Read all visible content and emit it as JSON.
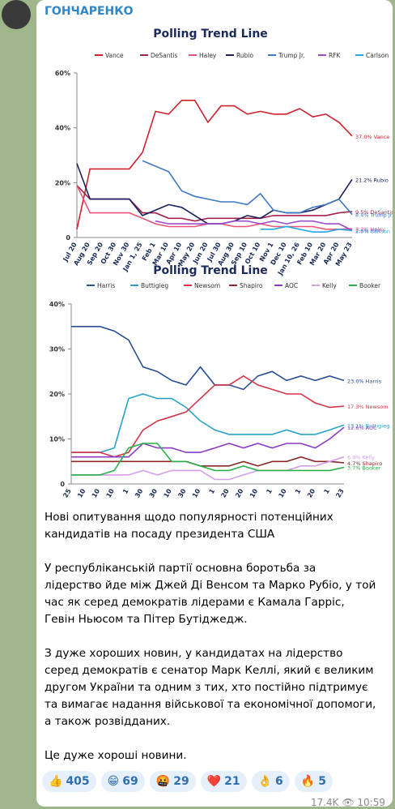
{
  "header": {
    "channel": "ГОНЧАРЕНКО"
  },
  "chart_data": [
    {
      "type": "line",
      "title": "Polling Trend Line",
      "categories": [
        "Jul 20",
        "Aug 20",
        "Sep 20",
        "Oct 30",
        "Nov 30",
        "Jan 1, 25",
        "Feb 1",
        "Mar 10",
        "Apr 10",
        "May 20",
        "Jun 20",
        "Jul 30",
        "Aug 30",
        "Sep 10",
        "Oct 10",
        "Nov 1",
        "Dec 10",
        "Jan 10, 26",
        "Feb 10",
        "Mar 20",
        "Apr 20",
        "May 23"
      ],
      "ylim": [
        0,
        60
      ],
      "yticks": [
        0,
        {
          "value": 20,
          "label": "20%"
        },
        {
          "value": 40,
          "label": "40%"
        },
        {
          "value": 60,
          "label": "60%"
        }
      ],
      "grid": false,
      "series": [
        {
          "name": "Vance",
          "color": "#d0212f",
          "values": [
            3,
            25,
            25,
            25,
            25,
            31,
            46,
            45,
            50,
            50,
            42,
            48,
            48,
            45,
            46,
            45,
            45,
            47,
            44,
            45,
            42,
            37.0
          ],
          "value_labels": [
            null,
            null,
            null,
            null,
            null,
            null,
            null,
            null,
            null,
            null,
            null,
            null,
            null,
            null,
            null,
            null,
            null,
            null,
            null,
            null,
            null,
            "37.0%"
          ]
        },
        {
          "name": "DeSantis",
          "color": "#a3214a",
          "values": [
            19,
            14,
            14,
            14,
            14,
            9,
            9,
            7,
            7,
            6,
            7,
            7,
            7,
            7,
            7,
            8,
            8,
            8,
            8,
            8,
            9,
            9.5
          ],
          "value_labels": [
            null,
            null,
            null,
            null,
            null,
            null,
            null,
            null,
            null,
            null,
            null,
            null,
            null,
            null,
            null,
            null,
            null,
            null,
            null,
            null,
            null,
            "9.5%"
          ]
        },
        {
          "name": "Haley",
          "color": "#e8547a",
          "values": [
            19,
            9,
            9,
            9,
            9,
            7,
            5,
            4,
            4,
            4,
            5,
            5,
            4,
            4,
            5,
            4,
            4,
            4,
            4,
            3,
            3,
            3.2
          ],
          "value_labels": [
            null,
            null,
            null,
            null,
            null,
            null,
            null,
            null,
            null,
            null,
            null,
            null,
            null,
            null,
            null,
            null,
            null,
            null,
            null,
            null,
            null,
            "3.2%"
          ]
        },
        {
          "name": "Rubio",
          "color": "#1b1f5e",
          "values": [
            27,
            14,
            14,
            14,
            14,
            8,
            10,
            12,
            11,
            8,
            5,
            5,
            6,
            8,
            7,
            10,
            9,
            9,
            10,
            12,
            14,
            21.2
          ],
          "value_labels": [
            null,
            null,
            null,
            null,
            null,
            null,
            null,
            null,
            null,
            null,
            null,
            null,
            null,
            null,
            null,
            null,
            null,
            null,
            null,
            null,
            null,
            "21.2%"
          ]
        },
        {
          "name": "Trump Jr.",
          "color": "#3f78c4",
          "values": [
            null,
            null,
            null,
            null,
            null,
            28,
            26,
            24,
            17,
            15,
            14,
            13,
            13,
            12,
            16,
            10,
            9,
            9,
            11,
            12,
            14,
            8.4
          ],
          "value_labels": [
            null,
            null,
            null,
            null,
            null,
            null,
            null,
            null,
            null,
            null,
            null,
            null,
            null,
            null,
            null,
            null,
            null,
            null,
            null,
            null,
            null,
            "8.4%"
          ]
        },
        {
          "name": "RFK",
          "color": "#9b4dca",
          "values": [
            null,
            null,
            null,
            null,
            null,
            null,
            6,
            5,
            5,
            5,
            5,
            5,
            6,
            6,
            5,
            6,
            5,
            6,
            6,
            5,
            5,
            2.6
          ],
          "value_labels": [
            null,
            null,
            null,
            null,
            null,
            null,
            null,
            null,
            null,
            null,
            null,
            null,
            null,
            null,
            null,
            null,
            null,
            null,
            null,
            null,
            null,
            "2.6%"
          ]
        },
        {
          "name": "Carlson",
          "color": "#29a8e0",
          "values": [
            null,
            null,
            null,
            null,
            null,
            null,
            null,
            null,
            null,
            null,
            null,
            null,
            null,
            null,
            3,
            3,
            4,
            3,
            2,
            2,
            3,
            2.5
          ],
          "value_labels": [
            null,
            null,
            null,
            null,
            null,
            null,
            null,
            null,
            null,
            null,
            null,
            null,
            null,
            null,
            null,
            null,
            null,
            null,
            null,
            null,
            null,
            "2.5%"
          ]
        }
      ]
    },
    {
      "type": "line",
      "title": "Polling Trend Line",
      "categories": [
        "25",
        "10",
        "10",
        "10",
        "1",
        "30",
        "30",
        "10",
        "30",
        "10",
        "1",
        "20",
        "20",
        "10",
        "1",
        "10",
        "1",
        "20",
        "1",
        "23"
      ],
      "ylim": [
        0,
        40
      ],
      "yticks": [
        0,
        {
          "value": 10,
          "label": "10%"
        },
        {
          "value": 20,
          "label": "20%"
        },
        {
          "value": 30,
          "label": "30%"
        },
        {
          "value": 40,
          "label": "40%"
        }
      ],
      "grid": false,
      "series": [
        {
          "name": "Harris",
          "color": "#2a4f96",
          "values": [
            35,
            35,
            35,
            34,
            32,
            26,
            25,
            23,
            22,
            26,
            22,
            22,
            21,
            24,
            25,
            23,
            24,
            23,
            24,
            23.0
          ],
          "value_labels": [
            null,
            null,
            null,
            null,
            null,
            null,
            null,
            null,
            null,
            null,
            null,
            null,
            null,
            null,
            null,
            null,
            null,
            null,
            null,
            "23.0%"
          ]
        },
        {
          "name": "Buttigieg",
          "color": "#2aa3c8",
          "values": [
            7,
            7,
            7,
            8,
            19,
            20,
            19,
            19,
            17,
            14,
            12,
            11,
            11,
            11,
            11,
            12,
            11,
            11,
            12,
            13.1
          ],
          "value_labels": [
            null,
            null,
            null,
            null,
            null,
            null,
            null,
            null,
            null,
            null,
            null,
            null,
            null,
            null,
            null,
            null,
            null,
            null,
            null,
            "13.1%"
          ]
        },
        {
          "name": "Newsom",
          "color": "#d63447",
          "values": [
            7,
            7,
            7,
            6,
            7,
            12,
            14,
            15,
            16,
            19,
            22,
            22,
            24,
            22,
            21,
            20,
            20,
            18,
            17,
            17.3
          ],
          "value_labels": [
            null,
            null,
            null,
            null,
            null,
            null,
            null,
            null,
            null,
            null,
            null,
            null,
            null,
            null,
            null,
            null,
            null,
            null,
            null,
            "17.3%"
          ]
        },
        {
          "name": "Shapiro",
          "color": "#8b2a2a",
          "values": [
            5,
            5,
            5,
            5,
            5,
            5,
            5,
            5,
            5,
            4,
            4,
            4,
            5,
            4,
            5,
            5,
            6,
            5,
            5,
            4.7
          ],
          "value_labels": [
            null,
            null,
            null,
            null,
            null,
            null,
            null,
            null,
            null,
            null,
            null,
            null,
            null,
            null,
            null,
            null,
            null,
            null,
            null,
            "4.7%"
          ]
        },
        {
          "name": "AOC",
          "color": "#8a3cc7",
          "values": [
            6,
            6,
            6,
            6,
            6,
            9,
            8,
            8,
            7,
            7,
            8,
            9,
            8,
            9,
            8,
            9,
            9,
            8,
            10,
            12.6
          ],
          "value_labels": [
            null,
            null,
            null,
            null,
            null,
            null,
            null,
            null,
            null,
            null,
            null,
            null,
            null,
            null,
            null,
            null,
            null,
            null,
            null,
            "12.6%"
          ]
        },
        {
          "name": "Kelly",
          "color": "#d59ee8",
          "values": [
            2,
            2,
            2,
            2,
            2,
            3,
            2,
            3,
            3,
            3,
            1,
            1,
            2,
            3,
            3,
            3,
            4,
            4,
            5,
            6.0
          ],
          "value_labels": [
            null,
            null,
            null,
            null,
            null,
            null,
            null,
            null,
            null,
            null,
            null,
            null,
            null,
            null,
            null,
            null,
            null,
            null,
            null,
            "6.0%"
          ]
        },
        {
          "name": "Booker",
          "color": "#2bb04a",
          "values": [
            2,
            2,
            2,
            3,
            8,
            9,
            9,
            5,
            5,
            4,
            3,
            3,
            4,
            3,
            3,
            3,
            3,
            3,
            3,
            3.7
          ],
          "value_labels": [
            null,
            null,
            null,
            null,
            null,
            null,
            null,
            null,
            null,
            null,
            null,
            null,
            null,
            null,
            null,
            null,
            null,
            null,
            null,
            "3.7%"
          ]
        }
      ]
    }
  ],
  "post": {
    "paragraphs": [
      "Нові опитування щодо популярності потенційних кандидатів на посаду президента США",
      "У республіканській партії основна боротьба за лідерство йде між Джей Ді Венсом та Марко Рубіо, у той час як серед демократів лідерами є Камала Гарріс, Гевін Ньюсом та Пітер Бутіджедж.",
      "З дуже хороших новин, у кандидатах на лідерство серед демократів є сенатор Марк Келлі, який є великим другом України та одним з тих, хто постійно підтримує та вимагає надання військової та економічної допомоги, а також розвідданих.",
      "Це дуже хороші новини."
    ],
    "reactions": [
      {
        "emoji": "👍",
        "count": 405
      },
      {
        "emoji": "😁",
        "count": 69
      },
      {
        "emoji": "🤬",
        "count": 29
      },
      {
        "emoji": "❤️",
        "count": 21
      },
      {
        "emoji": "👌",
        "count": 6
      },
      {
        "emoji": "🔥",
        "count": 5
      }
    ],
    "views": "17.4K",
    "time": "10:59"
  }
}
